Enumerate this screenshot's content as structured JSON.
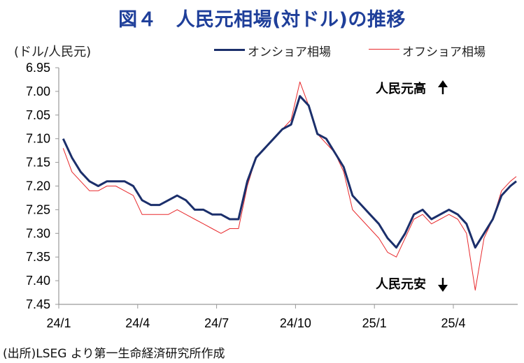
{
  "title": "図４　人民元相場(対ドル)の推移",
  "unit_label": "(ドル/人民元)",
  "source": "(出所)LSEG より第一生命経済研究所作成",
  "colors": {
    "onshore": "#1b2f6b",
    "offshore": "#e8292c",
    "title": "#1f3f9a",
    "axis": "#999999"
  },
  "chart_data": {
    "type": "line",
    "title": "図４　人民元相場(対ドル)の推移",
    "ylabel": "(ドル/人民元)",
    "y_inverted": true,
    "ylim": [
      6.95,
      7.45
    ],
    "yticks": [
      "6.95",
      "7.00",
      "7.05",
      "7.10",
      "7.15",
      "7.20",
      "7.25",
      "7.30",
      "7.35",
      "7.40",
      "7.45"
    ],
    "xticks": [
      "24/1",
      "24/4",
      "24/7",
      "24/10",
      "25/1",
      "25/4"
    ],
    "legend": [
      "オンショア相場",
      "オフショア相場"
    ],
    "legend_position": "top-right",
    "annotations": [
      "人民元高",
      "人民元安"
    ],
    "series": [
      {
        "name": "オンショア相場",
        "x": [
          "24/1",
          "24/1",
          "24/1",
          "24/2",
          "24/2",
          "24/2",
          "24/3",
          "24/3",
          "24/3",
          "24/4",
          "24/4",
          "24/4",
          "24/5",
          "24/5",
          "24/5",
          "24/6",
          "24/6",
          "24/6",
          "24/7",
          "24/7",
          "24/7",
          "24/8",
          "24/8",
          "24/8",
          "24/9",
          "24/9",
          "24/9",
          "24/10",
          "24/10",
          "24/10",
          "24/11",
          "24/11",
          "24/11",
          "24/12",
          "24/12",
          "24/12",
          "25/1",
          "25/1",
          "25/1",
          "25/2",
          "25/2",
          "25/2",
          "25/3",
          "25/3",
          "25/3",
          "25/4",
          "25/4",
          "25/4",
          "25/5",
          "25/5",
          "25/5",
          "25/6",
          "25/6",
          "25/6"
        ],
        "y": [
          7.1,
          7.14,
          7.17,
          7.19,
          7.2,
          7.19,
          7.19,
          7.19,
          7.2,
          7.23,
          7.24,
          7.24,
          7.23,
          7.22,
          7.23,
          7.25,
          7.25,
          7.26,
          7.26,
          7.27,
          7.27,
          7.19,
          7.14,
          7.12,
          7.1,
          7.08,
          7.07,
          7.01,
          7.03,
          7.09,
          7.1,
          7.13,
          7.16,
          7.22,
          7.24,
          7.26,
          7.28,
          7.31,
          7.33,
          7.3,
          7.26,
          7.25,
          7.27,
          7.26,
          7.25,
          7.26,
          7.28,
          7.33,
          7.3,
          7.27,
          7.22,
          7.2,
          7.19,
          7.19
        ]
      },
      {
        "name": "オフショア相場",
        "x": [
          "24/1",
          "24/1",
          "24/1",
          "24/2",
          "24/2",
          "24/2",
          "24/3",
          "24/3",
          "24/3",
          "24/4",
          "24/4",
          "24/4",
          "24/5",
          "24/5",
          "24/5",
          "24/6",
          "24/6",
          "24/6",
          "24/7",
          "24/7",
          "24/7",
          "24/8",
          "24/8",
          "24/8",
          "24/9",
          "24/9",
          "24/9",
          "24/10",
          "24/10",
          "24/10",
          "24/11",
          "24/11",
          "24/11",
          "24/12",
          "24/12",
          "24/12",
          "25/1",
          "25/1",
          "25/1",
          "25/2",
          "25/2",
          "25/2",
          "25/3",
          "25/3",
          "25/3",
          "25/4",
          "25/4",
          "25/4",
          "25/5",
          "25/5",
          "25/5",
          "25/6",
          "25/6",
          "25/6"
        ],
        "y": [
          7.12,
          7.17,
          7.19,
          7.21,
          7.21,
          7.2,
          7.2,
          7.21,
          7.22,
          7.26,
          7.26,
          7.26,
          7.26,
          7.25,
          7.26,
          7.27,
          7.28,
          7.29,
          7.3,
          7.29,
          7.29,
          7.2,
          7.14,
          7.12,
          7.1,
          7.08,
          7.06,
          6.98,
          7.03,
          7.09,
          7.11,
          7.13,
          7.17,
          7.25,
          7.27,
          7.29,
          7.31,
          7.34,
          7.35,
          7.31,
          7.27,
          7.26,
          7.28,
          7.27,
          7.26,
          7.27,
          7.3,
          7.42,
          7.31,
          7.27,
          7.21,
          7.19,
          7.18,
          7.18
        ]
      }
    ]
  }
}
